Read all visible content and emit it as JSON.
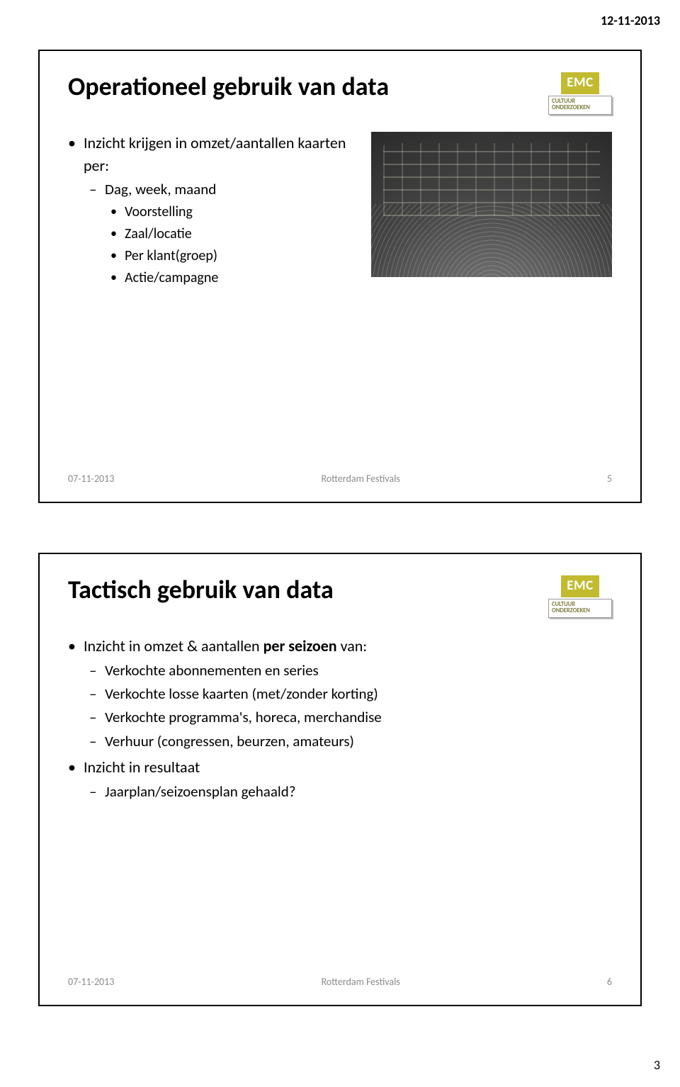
{
  "page": {
    "date": "12-11-2013",
    "number": "3"
  },
  "logo": {
    "top": "EMC",
    "line1": "CULTUUR",
    "line2": "ONDERZOEKEN"
  },
  "slide1": {
    "title": "Operationeel gebruik van data",
    "bullet1": "Inzicht krijgen in omzet/aantallen kaarten per:",
    "sub1": "Dag, week, maand",
    "sub2": "Voorstelling",
    "sub3": "Zaal/locatie",
    "sub4": "Per klant(groep)",
    "sub5": "Actie/campagne",
    "footer": {
      "date": "07-11-2013",
      "center": "Rotterdam Festivals",
      "num": "5"
    }
  },
  "slide2": {
    "title": "Tactisch gebruik van data",
    "bullet1_pre": "Inzicht in omzet & aantallen ",
    "bullet1_strong": "per seizoen",
    "bullet1_post": " van:",
    "sub1": "Verkochte abonnementen en series",
    "sub2": "Verkochte losse kaarten (met/zonder korting)",
    "sub3": "Verkochte programma's, horeca, merchandise",
    "sub4": "Verhuur (congressen, beurzen, amateurs)",
    "bullet2": "Inzicht in resultaat",
    "sub5": "Jaarplan/seizoensplan gehaald?",
    "footer": {
      "date": "07-11-2013",
      "center": "Rotterdam Festivals",
      "num": "6"
    }
  },
  "colors": {
    "logo_bg": "#c2bb2f",
    "footer_text": "#8a8a8a",
    "border": "#000000",
    "background": "#ffffff"
  }
}
